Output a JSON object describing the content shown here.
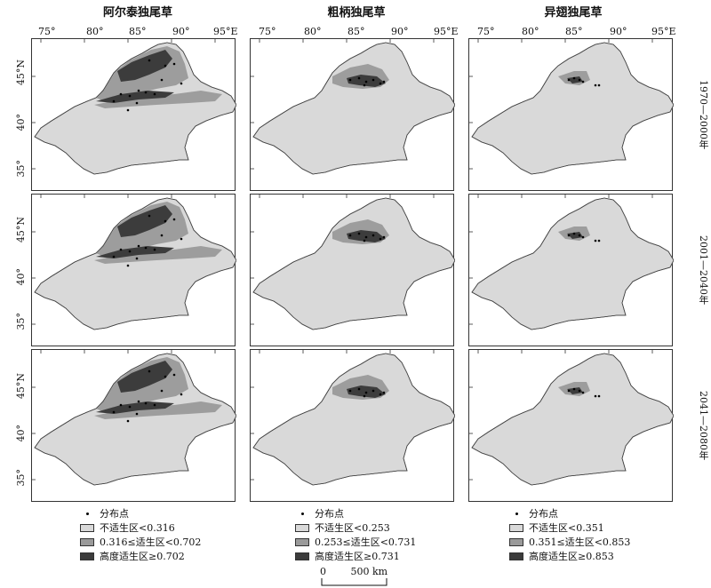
{
  "columns": [
    {
      "title": "阿尔泰独尾草",
      "legend": {
        "points": "分布点",
        "low": "不适生区<0.316",
        "mid": "0.316≤适生区<0.702",
        "high": "高度适生区≥0.702"
      }
    },
    {
      "title": "粗柄独尾草",
      "legend": {
        "points": "分布点",
        "low": "不适生区<0.253",
        "mid": "0.253≤适生区<0.731",
        "high": "高度适生区≥0.731"
      }
    },
    {
      "title": "异翅独尾草",
      "legend": {
        "points": "分布点",
        "low": "不适生区<0.351",
        "mid": "0.351≤适生区<0.853",
        "high": "高度适生区≥0.853"
      }
    }
  ],
  "rows": [
    "1970—2000年",
    "2001—2040年",
    "2041—2080年"
  ],
  "lon_ticks": [
    "75°",
    "80°",
    "85°",
    "90°",
    "95°E"
  ],
  "lat_ticks": [
    "45°N",
    "40°",
    "35°"
  ],
  "scale": {
    "zero": "0",
    "distance": "500 km"
  },
  "colors": {
    "background": "#d9d9d9",
    "mid": "#9a9a9a",
    "high": "#3c3c3c",
    "points": "#000000"
  }
}
